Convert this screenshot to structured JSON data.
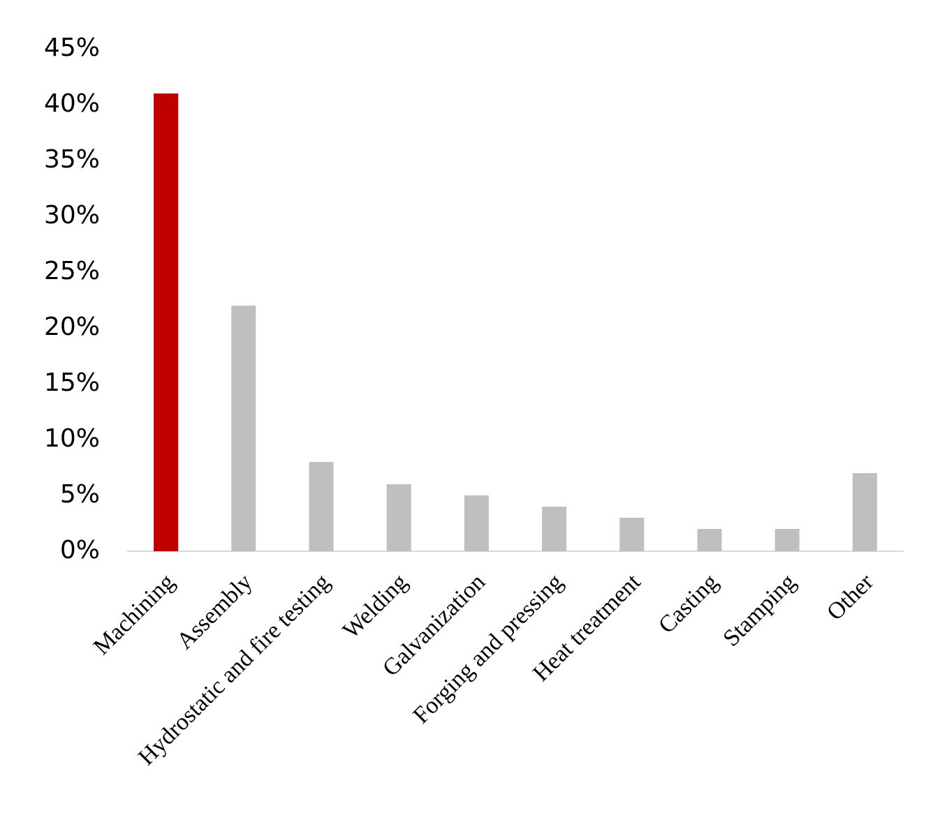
{
  "chart_data": {
    "type": "bar",
    "categories": [
      "Machining",
      "Assembly",
      "Hydrostatic and fire testing",
      "Welding",
      "Galvanization",
      "Forging and pressing",
      "Heat treatment",
      "Casting",
      "Stamping",
      "Other"
    ],
    "values": [
      41,
      22,
      8,
      6,
      5,
      4,
      3,
      2,
      2,
      7
    ],
    "colors": [
      "#c00000",
      "#bfbfbf",
      "#bfbfbf",
      "#bfbfbf",
      "#bfbfbf",
      "#bfbfbf",
      "#bfbfbf",
      "#bfbfbf",
      "#bfbfbf",
      "#bfbfbf"
    ],
    "ylim": [
      0,
      45
    ],
    "yticks": [
      {
        "value": 0,
        "label": "0%"
      },
      {
        "value": 5,
        "label": "5%"
      },
      {
        "value": 10,
        "label": "10%"
      },
      {
        "value": 15,
        "label": "15%"
      },
      {
        "value": 20,
        "label": "20%"
      },
      {
        "value": 25,
        "label": "25%"
      },
      {
        "value": 30,
        "label": "30%"
      },
      {
        "value": 35,
        "label": "35%"
      },
      {
        "value": 40,
        "label": "40%"
      },
      {
        "value": 45,
        "label": "45%"
      }
    ],
    "grid": false
  }
}
